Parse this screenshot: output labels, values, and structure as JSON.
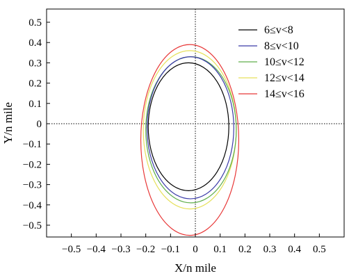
{
  "chart_data": {
    "type": "line",
    "xlabel": "X/n mile",
    "ylabel": "Y/n mile",
    "xlim": [
      -0.6,
      0.6
    ],
    "ylim": [
      -0.6,
      0.6
    ],
    "x_ticks": [
      -0.5,
      -0.4,
      -0.3,
      -0.2,
      -0.1,
      0,
      0.1,
      0.2,
      0.3,
      0.4,
      0.5
    ],
    "x_tick_labels": [
      "−0.5",
      "−0.4",
      "−0.3",
      "−0.2",
      "−0.1",
      "0",
      "0.1",
      "0.2",
      "0.3",
      "0.4",
      "0.5"
    ],
    "y_ticks": [
      0.5,
      0.4,
      0.3,
      0.2,
      0.1,
      0,
      -0.1,
      -0.2,
      -0.3,
      -0.4,
      -0.5
    ],
    "y_tick_labels": [
      "0.5",
      "0.4",
      "0.3",
      "0.2",
      "0.1",
      "0",
      "−0.1",
      "−0.2",
      "−0.3",
      "−0.4",
      "−0.5"
    ],
    "grid": false,
    "reference_lines": "dotted lines at x = 0 and y = 0",
    "legend_placement": "top-right",
    "series": [
      {
        "name": "6≤v<8",
        "color": "#000000",
        "x_left": -0.19,
        "x_right": 0.135,
        "y_top": 0.3,
        "y_bottom": -0.33
      },
      {
        "name": "8≤v<10",
        "color": "#3a3aa8",
        "x_left": -0.195,
        "x_right": 0.155,
        "y_top": 0.33,
        "y_bottom": -0.37
      },
      {
        "name": "10≤v<12",
        "color": "#5fae4a",
        "x_left": -0.2,
        "x_right": 0.165,
        "y_top": 0.33,
        "y_bottom": -0.39
      },
      {
        "name": "12≤v<14",
        "color": "#e6e05a",
        "x_left": -0.21,
        "x_right": 0.165,
        "y_top": 0.36,
        "y_bottom": -0.42
      },
      {
        "name": "14≤v<16",
        "color": "#e83838",
        "x_left": -0.22,
        "x_right": 0.175,
        "y_top": 0.39,
        "y_bottom": -0.55
      }
    ]
  }
}
